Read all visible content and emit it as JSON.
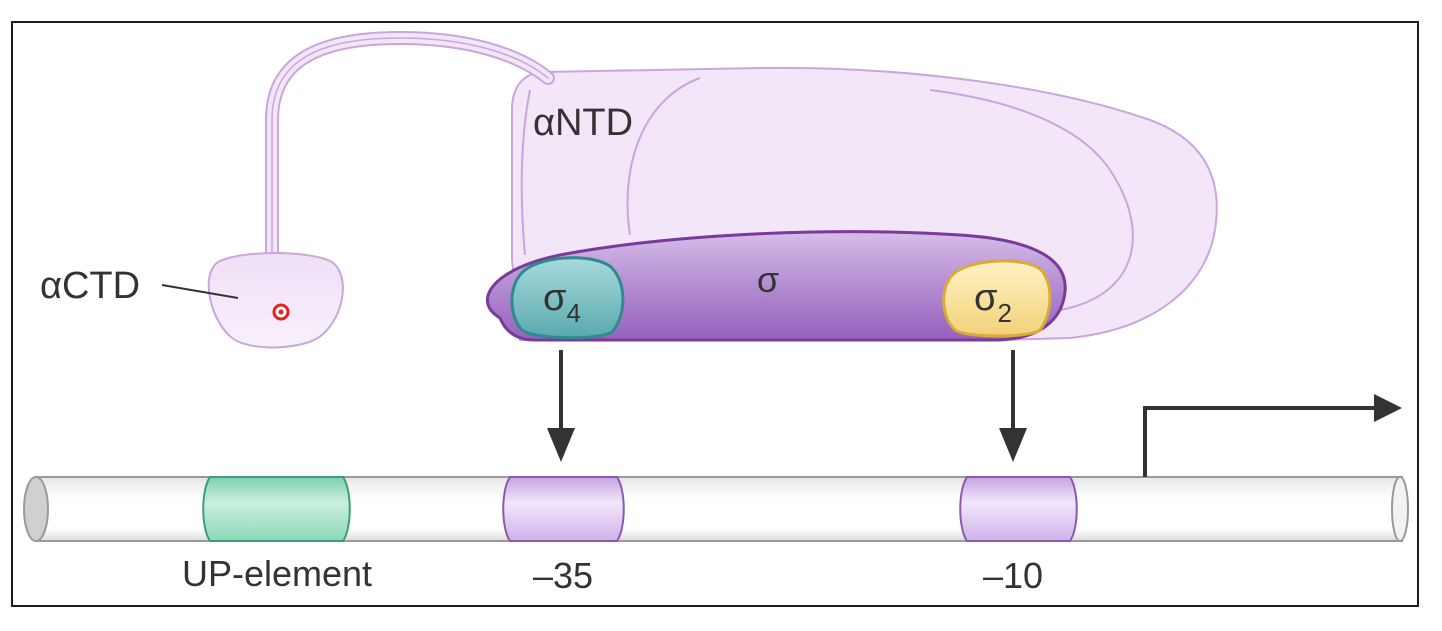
{
  "labels": {
    "alpha_ntd": "αNTD",
    "alpha_ctd": "αCTD",
    "sigma": "σ",
    "sigma4_base": "σ",
    "sigma4_sub": "4",
    "sigma2_base": "σ",
    "sigma2_sub": "2",
    "up_element": "UP-element",
    "minus35": "–35",
    "minus10": "–10"
  },
  "colors": {
    "frame": "#1a1a1a",
    "polymerase_fill": "#f3e6f8",
    "polymerase_stroke": "#c9a6dc",
    "sigma_fill": "#a878c8",
    "sigma_stroke": "#7a3a9a",
    "sigma4_fill": "#6fb8bc",
    "sigma4_stroke": "#2f8a90",
    "sigma2_fill": "#f7de8a",
    "sigma2_stroke": "#d9a93a",
    "dna_fill": "#ffffff",
    "dna_stroke": "#9a9a9a",
    "up_element_fill": "#8fd6b8",
    "up_element_stroke": "#3aa07a",
    "promoter_box_fill": "#d8bfee",
    "promoter_box_stroke": "#8a5ab0",
    "arrow": "#333333",
    "ctd_dot": "#e62020"
  },
  "icons": {
    "transcription_start": "bent-arrow-right-icon",
    "binding_arrow": "arrow-down-icon"
  }
}
